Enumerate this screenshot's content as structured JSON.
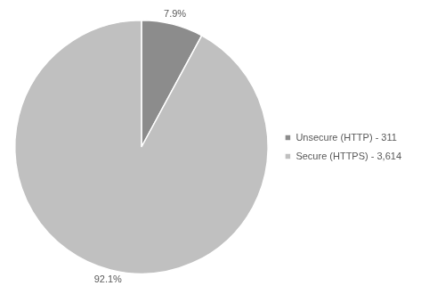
{
  "chart_data": {
    "type": "pie",
    "categories": [
      "Unsecure (HTTP) - 311",
      "Secure (HTTPS) - 3,614"
    ],
    "values": [
      7.9,
      92.1
    ],
    "value_labels": [
      "7.9%",
      "92.1%"
    ],
    "colors": [
      "#8c8c8c",
      "#c0c0c0"
    ],
    "data_labels": true,
    "legend": "right"
  }
}
